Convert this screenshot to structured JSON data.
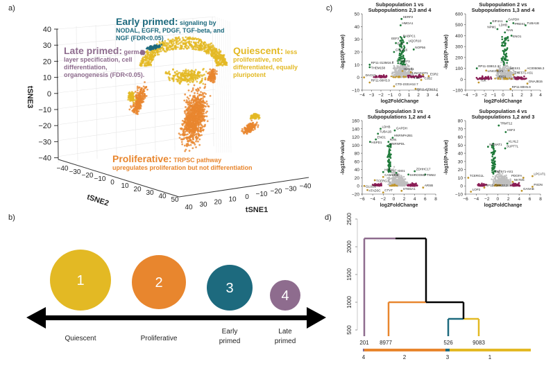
{
  "panel_labels": {
    "a": "a)",
    "b": "b)",
    "c": "c)",
    "d": "d)"
  },
  "colors": {
    "quiescent": "#e3b924",
    "proliferative": "#e8862e",
    "early_primed": "#1d6a7e",
    "late_primed": "#8e6c8e",
    "up": "#1f7a3a",
    "down": "#8a1d55",
    "mid": "#c0962c",
    "ns": "#bfbfbf"
  },
  "panel_a": {
    "axes": {
      "x": "tSNE1",
      "y": "tSNE2",
      "z": "tSNE3"
    },
    "z_ticks": [
      "40",
      "30",
      "20",
      "10",
      "0",
      "−10",
      "−20",
      "−30",
      "−40"
    ],
    "y_ticks": [
      "−40",
      "−30",
      "−20",
      "−10",
      "0",
      "10",
      "20",
      "30",
      "40",
      "50"
    ],
    "x_ticks": [
      "40",
      "30",
      "20",
      "10",
      "0",
      "−10",
      "−20",
      "−30",
      "−40"
    ],
    "annotations": {
      "early": {
        "head": "Early primed:",
        "body": " signaling by NODAL, EGFR, PDGF, TGF-beta, and NGF (FDR<0.05)"
      },
      "late": {
        "head": "Late primed:",
        "body": " germ layer specification, cell differentiation, organogenesis (FDR<0.05)."
      },
      "quiescent": {
        "head": "Quiescent:",
        "body": " less proliferative, not differentiated, equally pluripotent"
      },
      "proliferative": {
        "head": "Proliferative:",
        "body": " TRPSC pathway upregulates proliferation but not differentiation"
      }
    }
  },
  "panel_b": {
    "states": [
      {
        "num": "1",
        "label": "Quiescent",
        "color": "#e3b924"
      },
      {
        "num": "2",
        "label": "Proliferative",
        "color": "#e8862e"
      },
      {
        "num": "3",
        "label": "Early primed",
        "color": "#1d6a7e"
      },
      {
        "num": "4",
        "label": "Late primed",
        "color": "#8e6c8e"
      }
    ]
  },
  "chart_data": [
    {
      "type": "scatter",
      "title": "Subpopulation 1 vs Subpopulations 2,3 and 4",
      "xlabel": "log2FoldChange",
      "ylabel": "-log10(P-value)",
      "xlim": [
        -4,
        4
      ],
      "ylim": [
        -10,
        50
      ],
      "xticks": [
        -4,
        -3,
        -2,
        -1,
        0,
        1,
        2,
        3,
        4
      ],
      "yticks": [
        -10,
        0,
        10,
        20,
        30,
        40,
        50
      ],
      "genes": [
        [
          "SERF2",
          0.2,
          46
        ],
        [
          "HMGA1",
          0.1,
          41
        ],
        [
          "RABPC1",
          0.2,
          31
        ],
        [
          "EEF2",
          0.1,
          29
        ],
        [
          "FUS",
          -0.4,
          27
        ],
        [
          "UQCR10",
          0.8,
          27
        ],
        [
          "NOP56",
          1.5,
          22
        ],
        [
          "GTF3C6",
          -0.6,
          20
        ],
        [
          "EEF3",
          0.1,
          11
        ],
        [
          "RP11-313M16.6",
          -3.2,
          10
        ],
        [
          "THEM158",
          -3.2,
          8
        ],
        [
          "HESX1",
          0.3,
          5
        ],
        [
          "LINC01071",
          1.2,
          4
        ],
        [
          "CJB2",
          2.5,
          2
        ],
        [
          "ESR2",
          3.1,
          1
        ],
        [
          "DACH1",
          -3.8,
          0
        ],
        [
          "TSK",
          2.3,
          -2
        ],
        [
          "RP11-80H5.9",
          -3.2,
          -4
        ],
        [
          "CTD-2331H12.7",
          -0.6,
          -7
        ],
        [
          "RP11-673I13.2",
          1.7,
          -9
        ]
      ]
    },
    {
      "type": "scatter",
      "title": "Subpopulation 2 vs Subpopulations 1,3 and 4",
      "xlabel": "log2FoldChange",
      "ylabel": "-log10(P-value)",
      "xlim": [
        -4,
        4
      ],
      "ylim": [
        -100,
        600
      ],
      "xticks": [
        -4,
        -3,
        -2,
        -1,
        0,
        1,
        2,
        3,
        4
      ],
      "yticks": [
        -100,
        0,
        100,
        200,
        300,
        400,
        500,
        600
      ],
      "genes": [
        [
          "GAPDH",
          0.4,
          530
        ],
        [
          "EIF4A1",
          -1.3,
          515
        ],
        [
          "PRDX1",
          1.1,
          515
        ],
        [
          "TUBA1B",
          2.4,
          495
        ],
        [
          "LDHB",
          0.6,
          480
        ],
        [
          "NPM1",
          -0.6,
          460
        ],
        [
          "RAN",
          0.2,
          430
        ],
        [
          "ENO1",
          0.9,
          400
        ],
        [
          "RP11-338I12.3",
          -2.8,
          100
        ],
        [
          "LINC01071",
          -1.8,
          80
        ],
        [
          "HESX1",
          0.6,
          80
        ],
        [
          "IDO1",
          -0.6,
          80
        ],
        [
          "AC005066.3",
          2.4,
          80
        ],
        [
          "ZNF571-AS1",
          1.1,
          40
        ],
        [
          "TSK",
          -2.6,
          -30
        ],
        [
          "DNAJB15",
          2.6,
          -40
        ],
        [
          "RP11-80H5.9",
          0.8,
          -90
        ]
      ]
    },
    {
      "type": "scatter",
      "title": "Subpopulation 3 vs Subpopulations 1,2 and 4",
      "xlabel": "log2FoldChange",
      "ylabel": "-log10(P-value)",
      "xlim": [
        -6,
        8
      ],
      "ylim": [
        -20,
        160
      ],
      "xticks": [
        -6,
        -4,
        -2,
        0,
        2,
        4,
        6,
        8
      ],
      "yticks": [
        -20,
        0,
        20,
        40,
        60,
        80,
        100,
        120,
        140,
        160
      ],
      "genes": [
        [
          "LDHB",
          -2.5,
          140
        ],
        [
          "GAPDH",
          0.2,
          136
        ],
        [
          "TUBA1B",
          -3,
          128
        ],
        [
          "HNRNPA2B1",
          -0.2,
          118
        ],
        [
          "ENO1",
          -3.4,
          114
        ],
        [
          "RAN",
          -1,
          108
        ],
        [
          "HSPD1",
          -4.5,
          108
        ],
        [
          "HNRNPDL",
          -1,
          98
        ],
        [
          "HESX1",
          -2,
          34
        ],
        [
          "IDO1",
          0.5,
          32
        ],
        [
          "ZDHHC17",
          4,
          36
        ],
        [
          "CAM1308",
          -2,
          22
        ],
        [
          "TNNI2",
          6,
          28
        ],
        [
          "SHROOM2",
          2.8,
          28
        ],
        [
          "TCERG1L",
          -3.6,
          14
        ],
        [
          "GLUD2",
          -5.6,
          0
        ],
        [
          "ATAD3C",
          -5,
          -10
        ],
        [
          "CTVT",
          -2,
          -16
        ],
        [
          "ST8SIA1",
          1.5,
          -12
        ],
        [
          "ARSB",
          5.6,
          -4
        ]
      ]
    },
    {
      "type": "scatter",
      "title": "Subpopulation 4 vs Subpopulations 1,2 and 3",
      "xlabel": "log2FoldChange",
      "ylabel": "-log10(P-value)",
      "xlim": [
        -6,
        8
      ],
      "ylim": [
        -10,
        80
      ],
      "xticks": [
        -6,
        -4,
        -2,
        0,
        2,
        4,
        6,
        8
      ],
      "yticks": [
        -10,
        0,
        10,
        20,
        30,
        40,
        50,
        60,
        70,
        80
      ],
      "genes": [
        [
          "TRMT12",
          0.2,
          74
        ],
        [
          "HSF2",
          1.5,
          66
        ],
        [
          "KLHL2",
          1.8,
          52
        ],
        [
          "NMNAT1",
          -1.8,
          48
        ],
        [
          "SUPT7L",
          1.4,
          46
        ],
        [
          "ZNF571-AS1",
          -0.8,
          15
        ],
        [
          "TCERG1L",
          -5.5,
          10
        ],
        [
          "LPCAT1",
          6.5,
          12
        ],
        [
          "PDGFA",
          4.8,
          10
        ],
        [
          "NKTD5",
          2.8,
          5
        ],
        [
          "PXDN",
          6.5,
          -1
        ],
        [
          "RP11-738K22.3",
          -2.5,
          -2
        ],
        [
          "GANAB",
          4.5,
          -6
        ],
        [
          "LOP2",
          -5,
          -7
        ]
      ]
    },
    {
      "type": "dendrogram",
      "ylim": [
        500,
        2500
      ],
      "yticks": [
        500,
        1000,
        1500,
        2000,
        2500
      ],
      "leaves": [
        {
          "size": "201",
          "cluster": "4",
          "color": "#8e6c8e"
        },
        {
          "size": "8977",
          "cluster": "2",
          "color": "#e8862e"
        },
        {
          "size": "526",
          "cluster": "3",
          "color": "#1d6a7e"
        },
        {
          "size": "9083",
          "cluster": "1",
          "color": "#e3b924"
        }
      ],
      "merges": [
        {
          "pair": [
            "3",
            "1"
          ],
          "height": 700
        },
        {
          "pair": [
            "2",
            "3+1"
          ],
          "height": 1000
        },
        {
          "pair": [
            "4",
            "2+3+1"
          ],
          "height": 2150
        }
      ]
    }
  ]
}
